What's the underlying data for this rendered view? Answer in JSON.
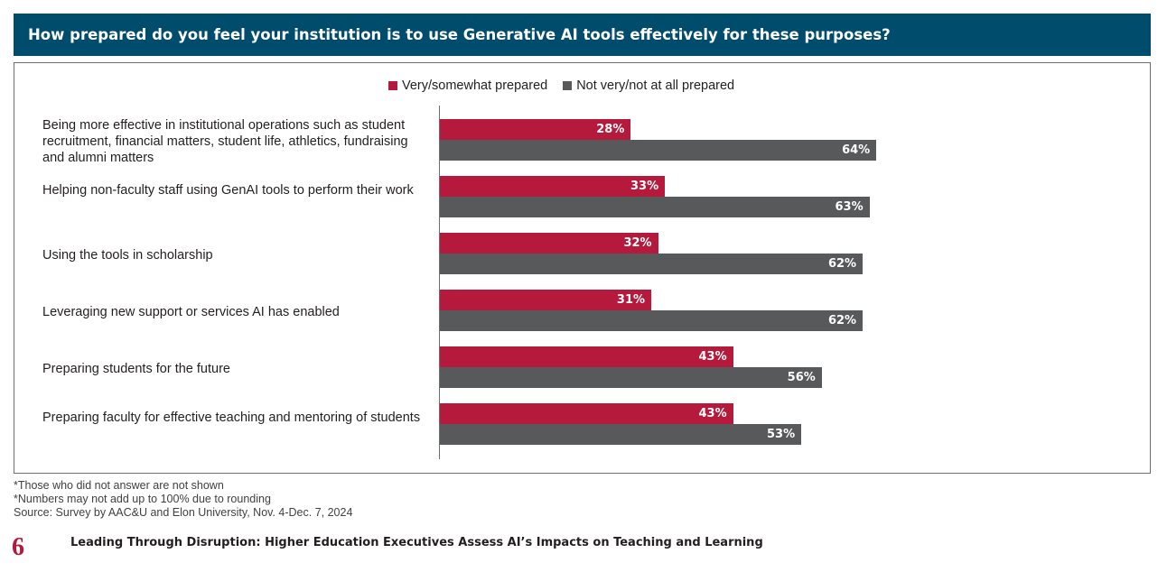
{
  "chart_data": {
    "type": "bar",
    "orientation": "horizontal",
    "title": "How prepared do you feel your institution is to use Generative AI tools effectively for these purposes?",
    "categories": [
      "Being more effective in institutional operations such as student recruitment, financial matters, student life, athletics, fundraising and alumni matters",
      "Helping non-faculty staff using GenAI tools to perform their work",
      "Using the tools in scholarship",
      "Leveraging new support or services AI has enabled",
      "Preparing students for the future",
      "Preparing faculty for effective teaching and mentoring of students"
    ],
    "series": [
      {
        "name": "Very/somewhat prepared",
        "color": "#b5193b",
        "values": [
          28,
          33,
          32,
          31,
          43,
          43
        ],
        "labels": [
          "28%",
          "33%",
          "32%",
          "31%",
          "43%",
          "43%"
        ]
      },
      {
        "name": "Not very/not at all prepared",
        "color": "#58595b",
        "values": [
          64,
          63,
          62,
          62,
          56,
          53
        ],
        "labels": [
          "64%",
          "63%",
          "62%",
          "62%",
          "56%",
          "53%"
        ]
      }
    ],
    "legend_position": "top",
    "grid": false
  },
  "footnotes": [
    "*Those who did not answer are not shown",
    "*Numbers may not add up to 100% due to rounding",
    "Source: Survey by AAC&U and Elon University, Nov. 4-Dec. 7, 2024"
  ],
  "footer": {
    "page_number": "6",
    "document_title": "Leading Through Disruption: Higher Education Executives Assess AI’s Impacts on Teaching and Learning"
  }
}
